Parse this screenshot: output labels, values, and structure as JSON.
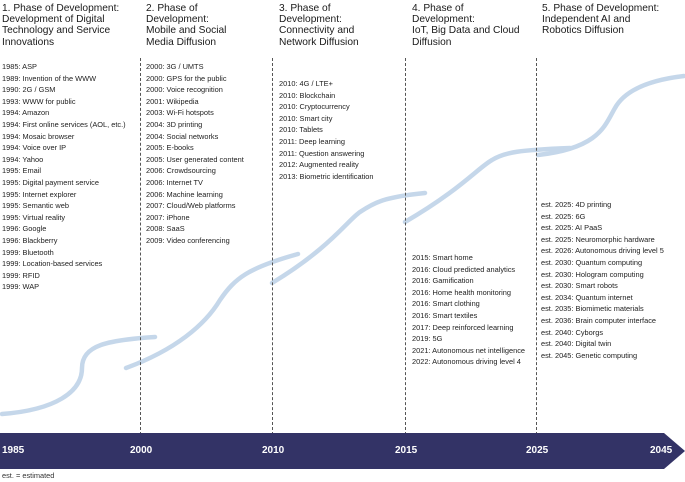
{
  "phases": [
    {
      "title_lines": [
        "1. Phase of Development:",
        "Development of Digital",
        "Technology and Service",
        "Innovations"
      ],
      "items": [
        "1985: ASP",
        "1989: Invention of the WWW",
        "1990: 2G / GSM",
        "1993: WWW for public",
        "1994: Amazon",
        "1994: First online services (AOL, etc.)",
        "1994: Mosaic browser",
        "1994: Voice over IP",
        "1994: Yahoo",
        "1995: Email",
        "1995: Digital payment service",
        "1995: Internet explorer",
        "1995: Semantic web",
        "1995: Virtual reality",
        "1996: Google",
        "1996: Blackberry",
        "1999: Bluetooth",
        "1999: Location-based services",
        "1999: RFID",
        "1999: WAP"
      ]
    },
    {
      "title_lines": [
        "2. Phase of",
        "Development:",
        "Mobile and Social",
        "Media Diffusion"
      ],
      "items": [
        "2000: 3G / UMTS",
        "2000: GPS for the public",
        "2000: Voice recognition",
        "2001: Wikipedia",
        "2003: Wi-Fi hotspots",
        "2004: 3D printing",
        "2004: Social networks",
        "2005: E-books",
        "2005: User generated content",
        "2006: Crowdsourcing",
        "2006: Internet TV",
        "2006: Machine learning",
        "2007: Cloud/Web platforms",
        "2007: iPhone",
        "2008: SaaS",
        "2009: Video conferencing"
      ]
    },
    {
      "title_lines": [
        "3. Phase of",
        "Development:",
        "Connectivity and",
        "Network Diffusion"
      ],
      "items": [
        "2010: 4G / LTE+",
        "2010: Blockchain",
        "2010: Cryptocurrency",
        "2010: Smart city",
        "2010: Tablets",
        "2011: Deep learning",
        "2011: Question answering",
        "2012: Augmented reality",
        "2013: Biometric identification"
      ]
    },
    {
      "title_lines": [
        "4. Phase of",
        "Development:",
        "IoT, Big Data and Cloud",
        "Diffusion"
      ],
      "items": [
        "2015: Smart home",
        "2016: Cloud predicted analytics",
        "2016: Gamification",
        "2016: Home health monitoring",
        "2016: Smart clothing",
        "2016: Smart textiles",
        "2017: Deep reinforced learning",
        "2019: 5G",
        "2021: Autonomous net intelligence",
        "2022: Autonomous driving level 4"
      ]
    },
    {
      "title_lines": [
        "5. Phase of Development:",
        "Independent AI and",
        "Robotics Diffusion"
      ],
      "items": [
        "est. 2025: 4D printing",
        "est. 2025: 6G",
        "est. 2025: AI PaaS",
        "est. 2025: Neuromorphic hardware",
        "est. 2026: Autonomous driving level 5",
        "est. 2030: Quantum computing",
        "est. 2030: Hologram computing",
        "est. 2030: Smart robots",
        "est. 2034: Quantum internet",
        "est. 2035: Biomimetic materials",
        "est. 2036: Brain computer interface",
        "est. 2040: Cyborgs",
        "est. 2040: Digital twin",
        "est. 2045: Genetic computing"
      ]
    }
  ],
  "timeline": {
    "years": [
      "1985",
      "2000",
      "2010",
      "2015",
      "2025",
      "2045"
    ]
  },
  "colors": {
    "arrow": "#333366",
    "curve": "#c5d7ea"
  },
  "footnote": "est. = estimated"
}
